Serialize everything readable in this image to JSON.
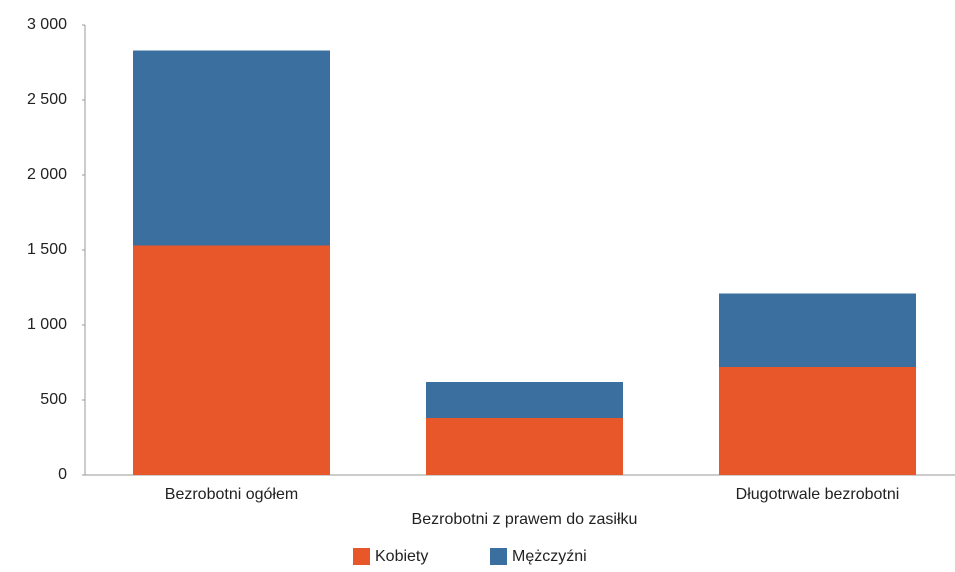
{
  "chart_data": {
    "type": "stacked_bar",
    "categories": [
      "Bezrobotni ogółem",
      "Bezrobotni z prawem do zasiłku",
      "Długotrwale bezrobotni"
    ],
    "series": [
      {
        "name": "Kobiety",
        "color": "#e8572a",
        "values": [
          1530,
          380,
          720
        ]
      },
      {
        "name": "Mężczyźni",
        "color": "#3a6f9f",
        "values": [
          1300,
          240,
          490
        ]
      }
    ],
    "ylim": [
      0,
      3000
    ],
    "yticks": [
      0,
      500,
      {
        "value": 1000,
        "label": "1 000"
      },
      {
        "value": 1500,
        "label": "1 500"
      },
      {
        "value": 2000,
        "label": "2 000"
      },
      {
        "value": 2500,
        "label": "2 500"
      },
      {
        "value": 3000,
        "label": "3 000"
      }
    ],
    "grid": false,
    "legend": "bottom"
  }
}
